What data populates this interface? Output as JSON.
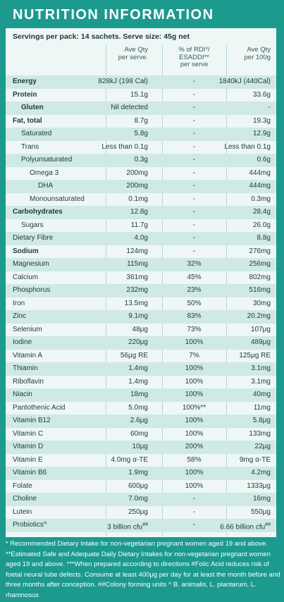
{
  "title": "NUTRITION INFORMATION",
  "servings": "Servings per pack: 14 sachets. Serve size: 45g net",
  "columns": {
    "serve": [
      "Ave Qty",
      "per serve."
    ],
    "rdi": [
      "% of RDI*/",
      "ESADDI**",
      "per serve"
    ],
    "per100": [
      "Ave Qty",
      "per 100g"
    ]
  },
  "rows": [
    {
      "name": "Energy",
      "serve": "828kJ (198 Cal)",
      "rdi": "-",
      "per100": "1840kJ (440Cal)",
      "bold": true,
      "indent": 0
    },
    {
      "name": "Protein",
      "serve": "15.1g",
      "rdi": "-",
      "per100": "33.6g",
      "bold": true,
      "indent": 0
    },
    {
      "name": "Gluten",
      "serve": "Nil detected",
      "rdi": "-",
      "per100": "-",
      "bold": true,
      "indent": 1
    },
    {
      "name": "Fat, total",
      "serve": "8.7g",
      "rdi": "-",
      "per100": "19.3g",
      "bold": true,
      "indent": 0
    },
    {
      "name": "Saturated",
      "serve": "5.8g",
      "rdi": "-",
      "per100": "12.9g",
      "bold": false,
      "indent": 1
    },
    {
      "name": "Trans",
      "serve": "Less than 0.1g",
      "rdi": "-",
      "per100": "Less than 0.1g",
      "bold": false,
      "indent": 1
    },
    {
      "name": "Polyunsaturated",
      "serve": "0.3g",
      "rdi": "-",
      "per100": "0.6g",
      "bold": false,
      "indent": 1
    },
    {
      "name": "Omega 3",
      "serve": "200mg",
      "rdi": "-",
      "per100": "444mg",
      "bold": false,
      "indent": 2
    },
    {
      "name": "DHA",
      "serve": "200mg",
      "rdi": "-",
      "per100": "444mg",
      "bold": false,
      "indent": 3
    },
    {
      "name": "Monounsaturated",
      "serve": "0.1mg",
      "rdi": "-",
      "per100": "0.3mg",
      "bold": false,
      "indent": 2
    },
    {
      "name": "Carbohydrates",
      "serve": "12.8g",
      "rdi": "-",
      "per100": "28.4g",
      "bold": true,
      "indent": 0
    },
    {
      "name": "Sugars",
      "serve": "11.7g",
      "rdi": "-",
      "per100": "26.0g",
      "bold": false,
      "indent": 1
    },
    {
      "name": "Dietary Fibre",
      "serve": "4.0g",
      "rdi": "-",
      "per100": "8.8g",
      "bold": false,
      "indent": 0
    },
    {
      "name": "Sodium",
      "serve": "124mg",
      "rdi": "-",
      "per100": "276mg",
      "bold": true,
      "indent": 0
    },
    {
      "name": "Magnesium",
      "serve": "115mg",
      "rdi": "32%",
      "per100": "256mg",
      "bold": false,
      "indent": 0
    },
    {
      "name": "Calcium",
      "serve": "361mg",
      "rdi": "45%",
      "per100": "802mg",
      "bold": false,
      "indent": 0
    },
    {
      "name": "Phosphorus",
      "serve": "232mg",
      "rdi": "23%",
      "per100": "516mg",
      "bold": false,
      "indent": 0
    },
    {
      "name": "Iron",
      "serve": "13.5mg",
      "rdi": "50%",
      "per100": "30mg",
      "bold": false,
      "indent": 0
    },
    {
      "name": "Zinc",
      "serve": "9.1mg",
      "rdi": "83%",
      "per100": "20.2mg",
      "bold": false,
      "indent": 0
    },
    {
      "name": "Selenium",
      "serve": "48μg",
      "rdi": "73%",
      "per100": "107μg",
      "bold": false,
      "indent": 0
    },
    {
      "name": "Iodine",
      "serve": "220μg",
      "rdi": "100%",
      "per100": "489μg",
      "bold": false,
      "indent": 0
    },
    {
      "name": "Vitamin A",
      "serve": "56μg RE",
      "rdi": "7%",
      "per100": "125μg RE",
      "bold": false,
      "indent": 0
    },
    {
      "name": "Thiamin",
      "serve": "1.4mg",
      "rdi": "100%",
      "per100": "3.1mg",
      "bold": false,
      "indent": 0
    },
    {
      "name": "Riboflavin",
      "serve": "1.4mg",
      "rdi": "100%",
      "per100": "3.1mg",
      "bold": false,
      "indent": 0
    },
    {
      "name": "Niacin",
      "serve": "18mg",
      "rdi": "100%",
      "per100": "40mg",
      "bold": false,
      "indent": 0
    },
    {
      "name": "Pantothenic Acid",
      "serve": "5.0mg",
      "rdi": "100%**",
      "per100": "11mg",
      "bold": false,
      "indent": 0
    },
    {
      "name": "Vitamin B12",
      "serve": "2.6μg",
      "rdi": "100%",
      "per100": "5.8μg",
      "bold": false,
      "indent": 0
    },
    {
      "name": "Vitamin C",
      "serve": "60mg",
      "rdi": "100%",
      "per100": "133mg",
      "bold": false,
      "indent": 0
    },
    {
      "name": "Vitamin D",
      "serve": "10μg",
      "rdi": "200%",
      "per100": "22μg",
      "bold": false,
      "indent": 0
    },
    {
      "name": "Vitamin E",
      "serve": "4.0mg α-TE",
      "rdi": "58%",
      "per100": "9mg α-TE",
      "bold": false,
      "indent": 0
    },
    {
      "name": "Vitamin B6",
      "serve": "1.9mg",
      "rdi": "100%",
      "per100": "4.2mg",
      "bold": false,
      "indent": 0
    },
    {
      "name": "Folate",
      "serve": "600μg",
      "rdi": "100%",
      "per100": "1333μg",
      "bold": false,
      "indent": 0
    },
    {
      "name": "Choline",
      "serve": "7.0mg",
      "rdi": "-",
      "per100": "16mg",
      "bold": false,
      "indent": 0
    },
    {
      "name": "Lutein",
      "serve": "250μg",
      "rdi": "-",
      "per100": "550μg",
      "bold": false,
      "indent": 0
    },
    {
      "name": "Probiotics^",
      "serve": "3 billion cfu",
      "serve_sup": "##",
      "rdi": "-",
      "per100": "6.66 billion cfu",
      "per100_sup": "##",
      "bold": false,
      "indent": 0
    }
  ],
  "footnotes": [
    "* Recommended Dietary Intake for non-vegetarian pregnant women aged 19 and above.",
    "**Estimated Safe and Adequate Daily Dietary Intakes for non-vegetarian pregnant women aged 19 and above.",
    "***When prepared according to directions",
    "#Folic Acid reduces risk of foetal neural tube defects. Consume at least 400μg per day for at least the month before and three months after conception.",
    "##Colony forming units",
    "^ B. animalis, L. plantarum, L. rhamnosus"
  ]
}
